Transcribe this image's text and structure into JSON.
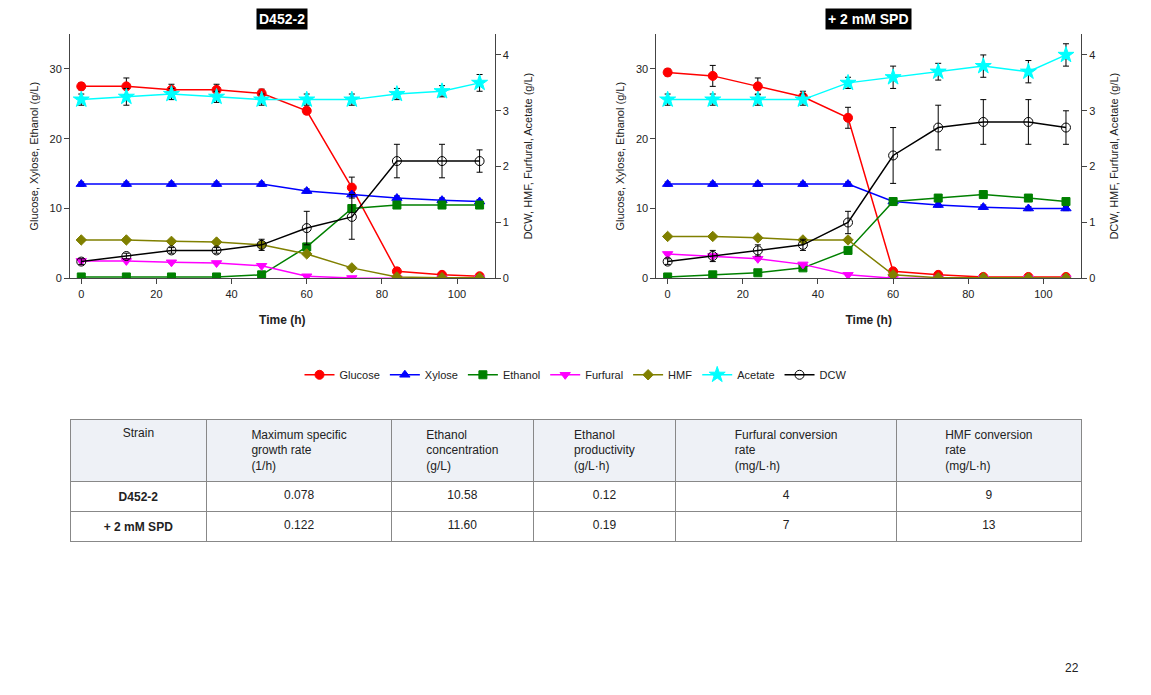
{
  "chart_data": [
    {
      "type": "line",
      "title": "D452-2",
      "xlabel": "Time (h)",
      "ylabel": "Glucose, Xylose, Ethanol (g/L)",
      "y2label": "DCW, HMF, Furfural, Acetate (g/L)",
      "xlim": [
        -3,
        110
      ],
      "xticks": [
        0,
        20,
        40,
        60,
        80,
        100
      ],
      "ylim": [
        0,
        35
      ],
      "yticks": [
        0,
        10,
        20,
        30
      ],
      "y2lim": [
        0,
        4.375
      ],
      "y2ticks": [
        0,
        1,
        2,
        3,
        4
      ],
      "grid": false,
      "legend": "bottom",
      "series": [
        {
          "name": "Glucose",
          "color": "red",
          "marker": "circle",
          "axis": "y",
          "x": [
            0,
            12,
            24,
            36,
            48,
            60,
            72,
            84,
            96,
            106
          ],
          "values": [
            27.5,
            27.5,
            27.0,
            27.0,
            26.5,
            24.0,
            13.0,
            1.0,
            0.5,
            0.3
          ],
          "errors": [
            0.5,
            1.2,
            0.8,
            0.8,
            0.6,
            0.5,
            1.5,
            0.5,
            0.2,
            0.1
          ]
        },
        {
          "name": "Xylose",
          "color": "blue",
          "marker": "triangle-up",
          "axis": "y",
          "x": [
            0,
            12,
            24,
            36,
            48,
            60,
            72,
            84,
            96,
            106
          ],
          "values": [
            13.5,
            13.5,
            13.5,
            13.5,
            13.5,
            12.5,
            12.0,
            11.5,
            11.2,
            11.0
          ],
          "errors": [
            0.3,
            0.3,
            0.3,
            0.3,
            0.3,
            0.3,
            0.3,
            0.3,
            0.3,
            0.3
          ]
        },
        {
          "name": "Ethanol",
          "color": "green",
          "marker": "square",
          "axis": "y",
          "x": [
            0,
            12,
            24,
            36,
            48,
            60,
            72,
            84,
            96,
            106
          ],
          "values": [
            0.2,
            0.2,
            0.2,
            0.2,
            0.5,
            4.5,
            10.0,
            10.5,
            10.5,
            10.5
          ],
          "errors": [
            0.05,
            0.05,
            0.05,
            0.05,
            0.1,
            0.5,
            0.5,
            0.5,
            0.5,
            0.3
          ]
        },
        {
          "name": "Furfural",
          "color": "magenta",
          "marker": "triangle-down",
          "axis": "y",
          "x": [
            0,
            12,
            24,
            36,
            48,
            60,
            72,
            84,
            96,
            106
          ],
          "values": [
            2.5,
            2.5,
            2.3,
            2.2,
            1.8,
            0.3,
            0.05,
            0.02,
            0.01,
            0.01
          ],
          "errors": [
            0.1,
            0.1,
            0.1,
            0.1,
            0.1,
            0.05,
            0.01,
            0.01,
            0.005,
            0.005
          ]
        },
        {
          "name": "HMF",
          "color": "#808000",
          "marker": "diamond",
          "axis": "y",
          "x": [
            0,
            12,
            24,
            36,
            48,
            60,
            72,
            84,
            96,
            106
          ],
          "values": [
            5.5,
            5.5,
            5.3,
            5.2,
            4.8,
            3.5,
            1.5,
            0.2,
            0.1,
            0.1
          ],
          "errors": [
            0.2,
            0.2,
            0.2,
            0.2,
            0.2,
            0.2,
            0.2,
            0.05,
            0.05,
            0.05
          ]
        },
        {
          "name": "Acetate",
          "color": "cyan",
          "marker": "star",
          "axis": "y2",
          "x": [
            0,
            12,
            24,
            36,
            48,
            60,
            72,
            84,
            96,
            106
          ],
          "values": [
            3.2,
            3.25,
            3.3,
            3.25,
            3.2,
            3.2,
            3.2,
            3.3,
            3.35,
            3.5
          ],
          "errors": [
            0.1,
            0.15,
            0.1,
            0.1,
            0.1,
            0.1,
            0.1,
            0.1,
            0.1,
            0.15
          ]
        },
        {
          "name": "DCW",
          "color": "black",
          "marker": "circle-open",
          "axis": "y2",
          "x": [
            0,
            12,
            24,
            36,
            48,
            60,
            72,
            84,
            96,
            106
          ],
          "values": [
            0.3,
            0.4,
            0.5,
            0.5,
            0.6,
            0.9,
            1.1,
            2.1,
            2.1,
            2.1
          ],
          "errors": [
            0.05,
            0.05,
            0.05,
            0.05,
            0.1,
            0.3,
            0.4,
            0.3,
            0.3,
            0.2
          ]
        }
      ]
    },
    {
      "type": "line",
      "title": "+ 2 mM SPD",
      "xlabel": "Time (h)",
      "ylabel": "Glucose, Xylose, Ethanol (g/L)",
      "y2label": "DCW, HMF, Furfural, Acetate (g/L)",
      "xlim": [
        -3,
        110
      ],
      "xticks": [
        0,
        20,
        40,
        60,
        80,
        100
      ],
      "ylim": [
        0,
        35
      ],
      "yticks": [
        0,
        10,
        20,
        30
      ],
      "y2lim": [
        0,
        4.375
      ],
      "y2ticks": [
        0,
        1,
        2,
        3,
        4
      ],
      "grid": false,
      "series": [
        {
          "name": "Glucose",
          "color": "red",
          "marker": "circle",
          "axis": "y",
          "x": [
            0,
            12,
            24,
            36,
            48,
            60,
            72,
            84,
            96,
            106
          ],
          "values": [
            29.5,
            29.0,
            27.5,
            26.0,
            23.0,
            1.0,
            0.5,
            0.2,
            0.2,
            0.2
          ],
          "errors": [
            0.5,
            1.5,
            1.2,
            0.8,
            1.5,
            0.3,
            0.1,
            0.05,
            0.05,
            0.05
          ]
        },
        {
          "name": "Xylose",
          "color": "blue",
          "marker": "triangle-up",
          "axis": "y",
          "x": [
            0,
            12,
            24,
            36,
            48,
            60,
            72,
            84,
            96,
            106
          ],
          "values": [
            13.5,
            13.5,
            13.5,
            13.5,
            13.5,
            11.0,
            10.5,
            10.2,
            10.0,
            10.0
          ],
          "errors": [
            0.3,
            0.3,
            0.3,
            0.3,
            0.3,
            0.3,
            0.3,
            0.3,
            0.3,
            0.3
          ]
        },
        {
          "name": "Ethanol",
          "color": "green",
          "marker": "square",
          "axis": "y",
          "x": [
            0,
            12,
            24,
            36,
            48,
            60,
            72,
            84,
            96,
            106
          ],
          "values": [
            0.2,
            0.5,
            0.8,
            1.5,
            4.0,
            11.0,
            11.5,
            12.0,
            11.5,
            11.0
          ],
          "errors": [
            0.05,
            0.1,
            0.1,
            0.2,
            0.3,
            0.5,
            0.5,
            0.5,
            0.5,
            0.3
          ]
        },
        {
          "name": "Furfural",
          "color": "magenta",
          "marker": "triangle-down",
          "axis": "y",
          "x": [
            0,
            12,
            24,
            36,
            48,
            60,
            72,
            84,
            96,
            106
          ],
          "values": [
            3.5,
            3.2,
            2.8,
            2.0,
            0.5,
            0.02,
            0.01,
            0.01,
            0.01,
            0.01
          ],
          "errors": [
            0.1,
            0.15,
            0.15,
            0.15,
            0.1,
            0.01,
            0.005,
            0.005,
            0.005,
            0.005
          ]
        },
        {
          "name": "HMF",
          "color": "#808000",
          "marker": "diamond",
          "axis": "y",
          "x": [
            0,
            12,
            24,
            36,
            48,
            60,
            72,
            84,
            96,
            106
          ],
          "values": [
            6.0,
            6.0,
            5.8,
            5.5,
            5.5,
            0.5,
            0.1,
            0.1,
            0.05,
            0.05
          ],
          "errors": [
            0.2,
            0.2,
            0.2,
            0.2,
            0.3,
            0.1,
            0.05,
            0.05,
            0.01,
            0.01
          ]
        },
        {
          "name": "Acetate",
          "color": "cyan",
          "marker": "star",
          "axis": "y2",
          "x": [
            0,
            12,
            24,
            36,
            48,
            60,
            72,
            84,
            96,
            106
          ],
          "values": [
            3.2,
            3.2,
            3.2,
            3.2,
            3.5,
            3.6,
            3.7,
            3.8,
            3.7,
            4.0
          ],
          "errors": [
            0.1,
            0.1,
            0.1,
            0.1,
            0.1,
            0.2,
            0.15,
            0.2,
            0.2,
            0.2
          ]
        },
        {
          "name": "DCW",
          "color": "black",
          "marker": "circle-open",
          "axis": "y2",
          "x": [
            0,
            12,
            24,
            36,
            48,
            60,
            72,
            84,
            96,
            106
          ],
          "values": [
            0.3,
            0.4,
            0.5,
            0.6,
            1.0,
            2.2,
            2.7,
            2.8,
            2.8,
            2.7
          ],
          "errors": [
            0.05,
            0.1,
            0.1,
            0.1,
            0.2,
            0.5,
            0.4,
            0.4,
            0.4,
            0.3
          ]
        }
      ]
    },
    {
      "type": "table",
      "columns": [
        {
          "header": [
            "Strain"
          ],
          "values": [
            "D452-2",
            "+ 2 mM SPD"
          ]
        },
        {
          "header": [
            "Maximum specific",
            "growth rate",
            "(1/h)"
          ],
          "values": [
            "0.078",
            "0.122"
          ]
        },
        {
          "header": [
            "Ethanol",
            "concentration",
            "(g/L)"
          ],
          "values": [
            "10.58",
            "11.60"
          ]
        },
        {
          "header": [
            "Ethanol",
            "productivity",
            "(g/L·h)"
          ],
          "values": [
            "0.12",
            "0.19"
          ]
        },
        {
          "header": [
            "Furfural conversion",
            "rate",
            "(mg/L·h)"
          ],
          "values": [
            "4",
            "7"
          ]
        },
        {
          "header": [
            "HMF conversion",
            "rate",
            "(mg/L·h)"
          ],
          "values": [
            "9",
            "13"
          ]
        }
      ],
      "annotations": [
        "22"
      ]
    }
  ]
}
